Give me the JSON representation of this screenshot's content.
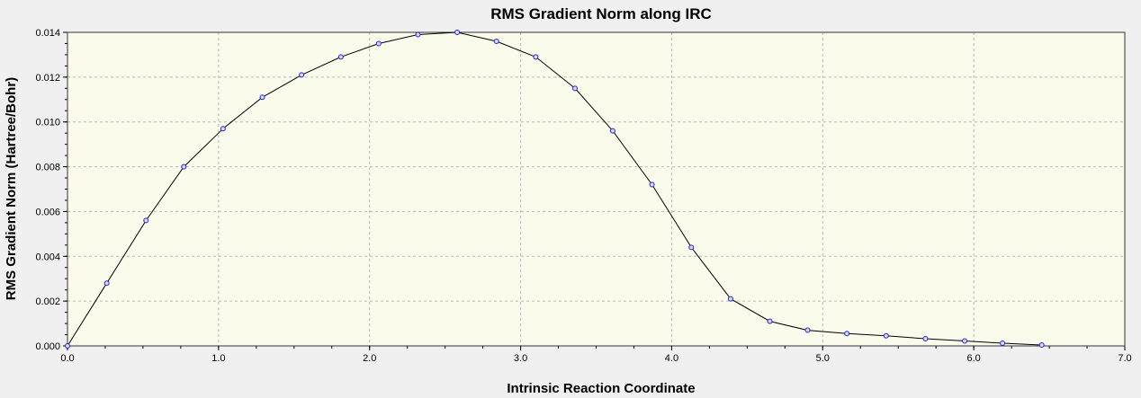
{
  "chart_data": {
    "type": "line",
    "title": "RMS Gradient Norm along IRC",
    "xlabel": "Intrinsic Reaction Coordinate",
    "ylabel": "RMS Gradient Norm (Hartree/Bohr)",
    "xlim": [
      0.0,
      7.0
    ],
    "ylim": [
      0.0,
      0.014
    ],
    "xticks": [
      0.0,
      1.0,
      2.0,
      3.0,
      4.0,
      5.0,
      6.0,
      7.0
    ],
    "xtick_labels": [
      "0.0",
      "1.0",
      "2.0",
      "3.0",
      "4.0",
      "5.0",
      "6.0",
      "7.0"
    ],
    "yticks": [
      0.0,
      0.002,
      0.004,
      0.006,
      0.008,
      0.01,
      0.012,
      0.014
    ],
    "ytick_labels": [
      "0.000",
      "0.002",
      "0.004",
      "0.006",
      "0.008",
      "0.010",
      "0.012",
      "0.014"
    ],
    "grid": true,
    "legend": "none",
    "colors": {
      "plot_background": "#fbfbec",
      "line": "#000000",
      "marker_stroke": "#2222cc",
      "marker_fill": "#d8d8ff",
      "grid": "#b8b8b8"
    },
    "series": [
      {
        "x": [
          0.0,
          0.26,
          0.52,
          0.77,
          1.03,
          1.29,
          1.55,
          1.81,
          2.06,
          2.32,
          2.58,
          2.84,
          3.1,
          3.36,
          3.61,
          3.87,
          4.13,
          4.39,
          4.65,
          4.9,
          5.16,
          5.42,
          5.68,
          5.94,
          6.19,
          6.45
        ],
        "y": [
          0.0,
          0.0028,
          0.0056,
          0.008,
          0.0097,
          0.0111,
          0.0121,
          0.0129,
          0.0135,
          0.0139,
          0.014,
          0.0136,
          0.0129,
          0.0115,
          0.0096,
          0.0072,
          0.0044,
          0.0021,
          0.0011,
          0.0007,
          0.00055,
          0.00045,
          0.00032,
          0.00022,
          0.00012,
          4e-05
        ]
      }
    ]
  }
}
